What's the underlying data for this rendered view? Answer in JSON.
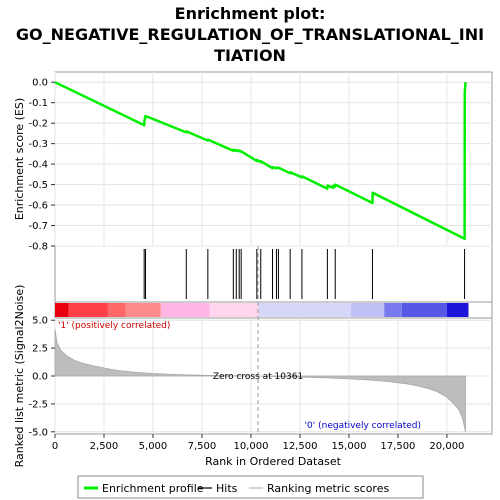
{
  "chart_data": {
    "type": "line",
    "title_lines": [
      "Enrichment plot:",
      "GO_NEGATIVE_REGULATION_OF_TRANSLATIONAL_INI",
      "TIATION"
    ],
    "top_panel": {
      "ylabel": "Enrichment score (ES)",
      "ylim": [
        -0.8,
        0.05
      ],
      "yticks": [
        "0.0",
        "-0.1",
        "-0.2",
        "-0.3",
        "-0.4",
        "-0.5",
        "-0.6",
        "-0.7",
        "-0.8"
      ],
      "ytick_values": [
        0.0,
        -0.1,
        -0.2,
        -0.3,
        -0.4,
        -0.5,
        -0.6,
        -0.7,
        -0.8
      ],
      "series": [
        {
          "name": "Enrichment profile",
          "color": "#00ee00",
          "x": [
            0,
            4550,
            4560,
            4620,
            6700,
            6710,
            7800,
            7810,
            9100,
            9110,
            9250,
            9260,
            9400,
            9410,
            9500,
            9510,
            10300,
            10310,
            10500,
            10510,
            11100,
            11110,
            11300,
            11310,
            11400,
            11410,
            12000,
            12010,
            12600,
            12610,
            13900,
            13910,
            14200,
            14210,
            14300,
            14310,
            16200,
            16210,
            20900,
            20910,
            20950
          ],
          "y": [
            0.0,
            -0.21,
            -0.19,
            -0.165,
            -0.245,
            -0.24,
            -0.285,
            -0.28,
            -0.335,
            -0.33,
            -0.335,
            -0.332,
            -0.337,
            -0.334,
            -0.34,
            -0.338,
            -0.385,
            -0.38,
            -0.39,
            -0.386,
            -0.42,
            -0.415,
            -0.42,
            -0.417,
            -0.42,
            -0.418,
            -0.445,
            -0.44,
            -0.465,
            -0.46,
            -0.52,
            -0.505,
            -0.515,
            -0.505,
            -0.51,
            -0.5,
            -0.59,
            -0.54,
            -0.765,
            -0.05,
            0.0
          ]
        }
      ]
    },
    "hits": [
      4550,
      4620,
      6700,
      7800,
      9100,
      9250,
      9400,
      9500,
      10300,
      10500,
      11100,
      11300,
      11400,
      12000,
      12600,
      13900,
      14300,
      16200,
      20900
    ],
    "colorbar": {
      "segments": [
        {
          "x0": 0,
          "x1": 700,
          "color": "#e8000e"
        },
        {
          "x0": 700,
          "x1": 2700,
          "color": "#ff3f48"
        },
        {
          "x0": 2700,
          "x1": 3600,
          "color": "#ff6868"
        },
        {
          "x0": 3600,
          "x1": 5400,
          "color": "#ff8a8a"
        },
        {
          "x0": 5400,
          "x1": 7900,
          "color": "#ffb6e4"
        },
        {
          "x0": 7900,
          "x1": 10400,
          "color": "#ffd6ee"
        },
        {
          "x0": 10400,
          "x1": 15100,
          "color": "#d6d6f8"
        },
        {
          "x0": 15100,
          "x1": 16800,
          "color": "#c0c0f6"
        },
        {
          "x0": 16800,
          "x1": 17700,
          "color": "#7a7af0"
        },
        {
          "x0": 17700,
          "x1": 20000,
          "color": "#5858e6"
        },
        {
          "x0": 20000,
          "x1": 21100,
          "color": "#1c14d8"
        }
      ]
    },
    "bottom_panel": {
      "ylabel": "Ranked list metric (Signal2Noise)",
      "ylim": [
        -5.2,
        5.2
      ],
      "yticks": [
        "5.0",
        "2.5",
        "0.0",
        "-2.5",
        "-5.0"
      ],
      "ytick_values": [
        5.0,
        2.5,
        0.0,
        -2.5,
        -5.0
      ],
      "profile_x": [
        0,
        100,
        300,
        600,
        1000,
        1500,
        2000,
        3000,
        4000,
        5000,
        6000,
        7000,
        8000,
        9000,
        10000,
        10361,
        11000,
        12000,
        13000,
        14000,
        15000,
        16000,
        17000,
        18000,
        18500,
        19000,
        19500,
        20000,
        20300,
        20600,
        20800,
        20950
      ],
      "profile_y": [
        4.2,
        3.0,
        2.3,
        1.8,
        1.4,
        1.1,
        0.9,
        0.55,
        0.35,
        0.22,
        0.14,
        0.09,
        0.05,
        0.02,
        0.005,
        0.0,
        -0.03,
        -0.07,
        -0.12,
        -0.18,
        -0.26,
        -0.36,
        -0.5,
        -0.72,
        -0.88,
        -1.1,
        -1.4,
        -1.9,
        -2.4,
        -3.0,
        -3.8,
        -5.0
      ],
      "zero_cross_label": "Zero cross at 10361",
      "zero_cross_x": 10361,
      "pos_label": "'1' (positively correlated)",
      "neg_label": "'0' (negatively correlated)",
      "pos_color": "#cc0000",
      "neg_color": "#0000cc"
    },
    "xlabel": "Rank in Ordered Dataset",
    "xlim": [
      0,
      22300
    ],
    "xticks": [
      "0",
      "2,500",
      "5,000",
      "7,500",
      "10,000",
      "12,500",
      "15,000",
      "17,500",
      "20,000"
    ],
    "xtick_values": [
      0,
      2500,
      5000,
      7500,
      10000,
      12500,
      15000,
      17500,
      20000
    ],
    "legend": [
      {
        "label": "Enrichment profile",
        "color": "#00ee00",
        "kind": "thick-line"
      },
      {
        "label": "Hits",
        "color": "#000000",
        "kind": "line"
      },
      {
        "label": "Ranking metric scores",
        "color": "#bbbbbb",
        "kind": "line"
      }
    ]
  }
}
